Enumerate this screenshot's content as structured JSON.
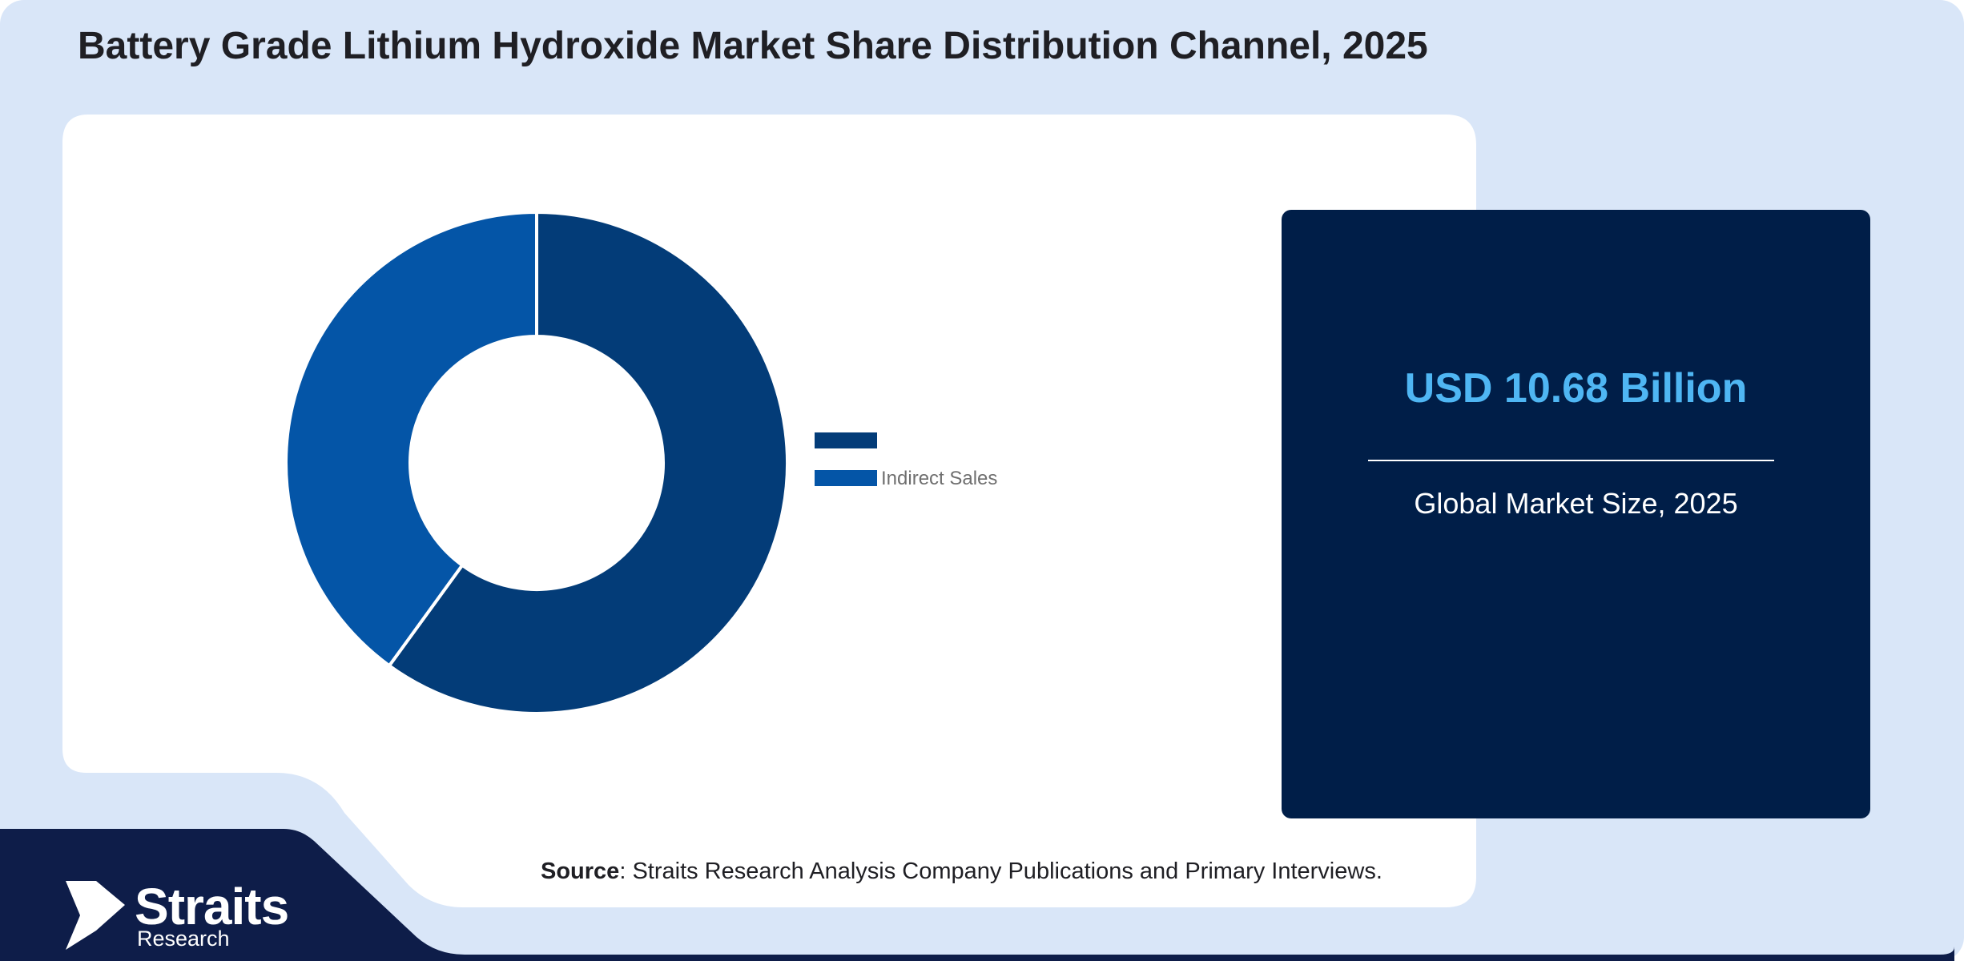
{
  "title": "Battery Grade Lithium Hydroxide Market Share Distribution Channel, 2025",
  "chart_data": {
    "type": "pie",
    "donut": true,
    "categories": [
      "",
      "Indirect Sales"
    ],
    "values": [
      60,
      40
    ],
    "colors": [
      "#033c78",
      "#0455a7"
    ],
    "legend_position": "right"
  },
  "kpi": {
    "value": "USD 10.68 Billion",
    "label": "Global Market Size, 2025"
  },
  "source": {
    "label": "Source",
    "text": ": Straits Research Analysis Company Publications and Primary Interviews."
  },
  "brand": {
    "name": "Straits",
    "sub": "Research"
  },
  "colors": {
    "background": "#d9e6f8",
    "panel": "#ffffff",
    "kpi_box": "#001e48",
    "kpi_value": "#4fb6f3",
    "footer": "#0e1d49"
  }
}
